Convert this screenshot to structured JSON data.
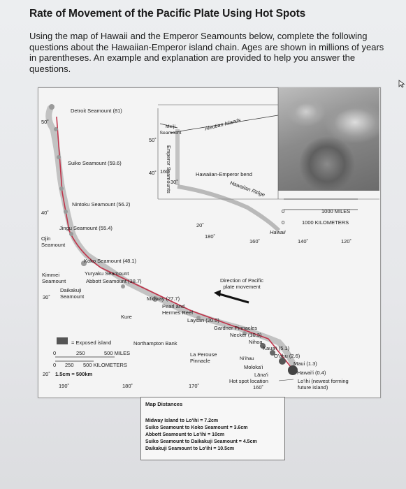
{
  "header": {
    "title": "Rate of Movement of the Pacific Plate Using Hot Spots",
    "intro": "Using the map of Hawaii and the Emperor Seamounts below, complete the following questions about the Hawaiian-Emperor island chain. Ages are shown in millions of years in parentheses. An example and explanation are provided to help you answer the questions."
  },
  "map": {
    "lat_labels": [
      "50˚",
      "40˚",
      "30˚",
      "20˚",
      "50˚",
      "40˚",
      "30˚",
      "20˚"
    ],
    "lon_labels": [
      "190˚",
      "180˚",
      "170˚",
      "160˚",
      "180˚",
      "160˚",
      "140˚",
      "120˚",
      "160˚"
    ],
    "places": {
      "detroit": "Detroit Seamount (81)",
      "suiko": "Suiko Seamount (59.6)",
      "nintoku": "Nintoku Seamount (56.2)",
      "jingu": "Jingu Seamount (55.4)",
      "ojin": "Ojin Seamount",
      "koko": "Koko Seamount (48.1)",
      "kimmei": "Kimmei Seamount",
      "yuryaku": "Yuryaku Seamount",
      "abbott": "Abbott Seamount (38.7)",
      "daikakuji": "Daikakuji Seamount",
      "kure": "Kure",
      "midway": "Midway (27.7)",
      "pearl": "Pearl and Hermes Reef",
      "laysan": "Laysan (20.0)",
      "gardner": "Gardner Pinnacles",
      "necker": "Necker (10.3)",
      "nihoa": "Nihoa",
      "kauai": "Kaua'i (5.1)",
      "oahu": "O'ahu (2.6)",
      "maui": "Maui (1.3)",
      "hawaii": "Hawai'i (0.4)",
      "molokai": "Moloka'i",
      "lanai": "Lāna'i",
      "loihi": "Lo'ihi (newest forming future island)",
      "hotspot": "Hot spot location",
      "niihau": "Ni'ihau",
      "la_perouse": "La Perouse Pinnacle",
      "northampton": "Northampton Bank",
      "meiji": "Meiji Seamount",
      "aleutian": "Aleutian Islands",
      "emperor": "Emperor Seamounts",
      "bend": "Hawaiian-Emperor bend",
      "ridge": "Hawaiian Ridge",
      "inset_hawaii": "Hawaii"
    },
    "direction": "Direction of Pacific plate movement",
    "legend_exposed": "= Exposed island",
    "scale_miles": [
      "0",
      "250",
      "500 MILES"
    ],
    "scale_km": [
      "0",
      "250",
      "500 KILOMETERS"
    ],
    "scale_ratio": "1.5cm = 500km",
    "inset_scale_miles": [
      "0",
      "1000 MILES"
    ],
    "inset_scale_km": [
      "0",
      "1000 KILOMETERS"
    ]
  },
  "distances": {
    "title": "Map Distances",
    "lines": [
      "Midway Island to Lo'ihi = 7.2cm",
      "Suiko Seamount to Koko Seamount = 3.6cm",
      "Abbott Seamount to Lo'ihi = 10cm",
      "Suiko Seamount to Daikakuji Seamount = 4.5cm",
      "Daikakuji Seamount to Lo'ihi = 10.5cm"
    ]
  },
  "colors": {
    "track": "#c0334a",
    "land": "#9a9a9a"
  }
}
